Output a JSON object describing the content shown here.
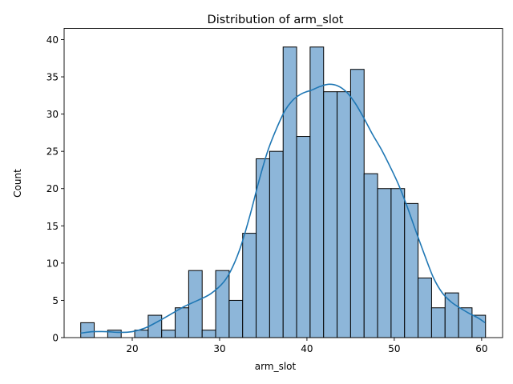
{
  "chart_data": {
    "type": "bar",
    "title": "Distribution of arm_slot",
    "xlabel": "arm_slot",
    "ylabel": "Count",
    "xlim": [
      12.2,
      62.4
    ],
    "ylim": [
      0,
      41.5
    ],
    "xticks": [
      20,
      30,
      40,
      50,
      60
    ],
    "yticks": [
      0,
      5,
      10,
      15,
      20,
      25,
      30,
      35,
      40
    ],
    "bin_start": 14.1,
    "bin_width": 1.545,
    "counts": [
      2,
      0,
      1,
      0,
      1,
      3,
      1,
      4,
      9,
      1,
      9,
      5,
      14,
      24,
      25,
      39,
      27,
      39,
      33,
      33,
      36,
      22,
      20,
      20,
      18,
      8,
      4,
      6,
      4,
      3
    ],
    "kde": {
      "x": [
        14.1,
        15.5,
        17.0,
        18.5,
        20.0,
        21.5,
        23.0,
        24.5,
        26.0,
        27.5,
        29.0,
        30.5,
        31.5,
        32.5,
        33.5,
        34.5,
        35.5,
        36.5,
        37.5,
        38.5,
        39.5,
        40.5,
        41.5,
        42.5,
        43.5,
        44.5,
        45.5,
        46.5,
        47.5,
        48.5,
        49.5,
        50.5,
        51.5,
        52.5,
        53.5,
        54.5,
        55.5,
        56.5,
        57.5,
        58.5,
        59.5,
        60.4
      ],
      "y": [
        0.6,
        0.8,
        0.8,
        0.7,
        0.8,
        1.3,
        2.2,
        3.2,
        4.2,
        5.0,
        5.9,
        7.5,
        9.5,
        12.5,
        16.5,
        21.0,
        25.0,
        28.0,
        30.5,
        32.0,
        32.8,
        33.2,
        33.7,
        34.0,
        33.8,
        33.0,
        31.5,
        29.5,
        27.3,
        25.3,
        23.0,
        20.5,
        17.5,
        14.2,
        11.0,
        8.0,
        6.0,
        4.8,
        4.0,
        3.3,
        2.7,
        2.0
      ]
    },
    "colors": {
      "bar_fill": "#8db6d9",
      "bar_edge": "#000000",
      "kde_line": "#1f77b4"
    },
    "grid": false,
    "legend": "none"
  }
}
